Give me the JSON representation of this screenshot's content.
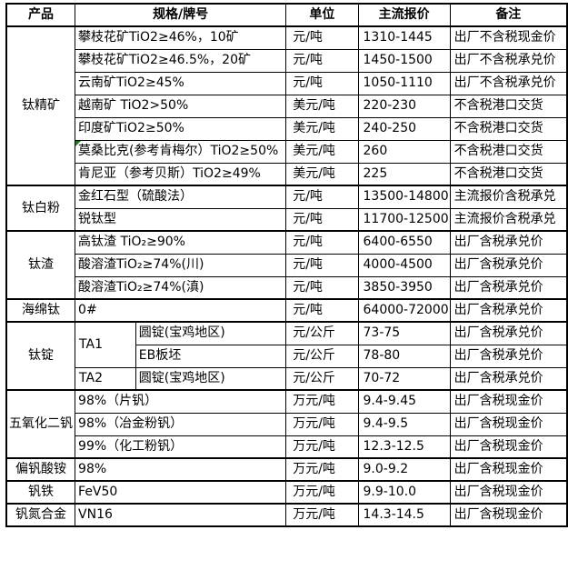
{
  "colors": {
    "border": "#000000",
    "comment_marker": "#1e7b1e",
    "background": "#ffffff",
    "text": "#000000"
  },
  "table": {
    "headers": {
      "product": "产品",
      "spec": "规格/牌号",
      "unit": "单位",
      "price": "主流报价",
      "note": "备注"
    },
    "groups": [
      {
        "product": "钛精矿",
        "rows": [
          {
            "spec": "攀枝花矿TiO2≥46%，10矿",
            "unit": "元/吨",
            "price": "1310-1445",
            "note": "出厂不含税现金价"
          },
          {
            "spec": "攀枝花矿TiO2≥46.5%，20矿",
            "unit": "元/吨",
            "price": "1450-1500",
            "note": "出厂不含税承兑价"
          },
          {
            "spec": "云南矿TiO2≥45%",
            "unit": "元/吨",
            "price": "1050-1110",
            "note": "出厂不含税承兑价"
          },
          {
            "spec": "越南矿 TiO2>50%",
            "unit": "美元/吨",
            "price": "220-230",
            "note": "不含税港口交货"
          },
          {
            "spec": "印度矿TiO2≥50%",
            "unit": "美元/吨",
            "price": "240-250",
            "note": "不含税港口交货"
          },
          {
            "spec": "莫桑比克(参考肯梅尔）TiO2≥50%",
            "unit": "美元/吨",
            "price": "260",
            "note": "不含税港口交货",
            "comment_marker": true
          },
          {
            "spec": "肯尼亚（参考贝斯）TiO2≥49%",
            "unit": "美元/吨",
            "price": "225",
            "note": "不含税港口交货"
          }
        ]
      },
      {
        "product": "钛白粉",
        "rows": [
          {
            "spec": "金红石型（硫酸法）",
            "unit": "元/吨",
            "price": "13500-14800",
            "note": "主流报价含税承兑"
          },
          {
            "spec": "锐钛型",
            "unit": "元/吨",
            "price": "11700-12500",
            "note": "主流报价含税承兑"
          }
        ]
      },
      {
        "product": "钛渣",
        "rows": [
          {
            "spec": "高钛渣 TiO₂≥90%",
            "unit": "元/吨",
            "price": "6400-6550",
            "note": "出厂含税承兑价"
          },
          {
            "spec": "酸溶渣TiO₂≥74%(川)",
            "unit": "元/吨",
            "price": "4000-4500",
            "note": "出厂含税承兑价"
          },
          {
            "spec": "酸溶渣TiO₂≥74%(滇)",
            "unit": "元/吨",
            "price": "3850-3950",
            "note": "出厂含税承兑价"
          }
        ]
      },
      {
        "product": "海绵钛",
        "rows": [
          {
            "spec": "0#",
            "unit": "元/吨",
            "price": "64000-72000",
            "note": "出厂含税承兑价"
          }
        ]
      },
      {
        "product": "钛锭",
        "has_grade_column": true,
        "rows": [
          {
            "grade": "TA1",
            "grade_rowspan": 2,
            "spec": "圆锭(宝鸡地区)",
            "unit": "元/公斤",
            "price": "73-75",
            "note": "出厂含税承兑价"
          },
          {
            "spec": "EB板坯",
            "unit": "元/公斤",
            "price": "78-80",
            "note": "出厂含税承兑价"
          },
          {
            "grade": "TA2",
            "grade_rowspan": 1,
            "spec": "圆锭(宝鸡地区)",
            "unit": "元/公斤",
            "price": "70-72",
            "note": "出厂含税承兑价"
          }
        ]
      },
      {
        "product": "五氧化二钒",
        "rows": [
          {
            "spec": "98%（片钒）",
            "unit": "万元/吨",
            "price": "9.4-9.45",
            "note": "出厂含税现金价"
          },
          {
            "spec": "98%（冶金粉钒）",
            "unit": "万元/吨",
            "price": "9.4-9.5",
            "note": "出厂含税现金价"
          },
          {
            "spec": "99%（化工粉钒）",
            "unit": "万元/吨",
            "price": "12.3-12.5",
            "note": "出厂含税现金价"
          }
        ]
      },
      {
        "product": "偏钒酸铵",
        "rows": [
          {
            "spec": "98%",
            "unit": "万元/吨",
            "price": "9.0-9.2",
            "note": "出厂含税现金价"
          }
        ]
      },
      {
        "product": "钒铁",
        "rows": [
          {
            "spec": "FeV50",
            "unit": "万元/吨",
            "price": "9.9-10.0",
            "note": "出厂含税现金价"
          }
        ]
      },
      {
        "product": "钒氮合金",
        "rows": [
          {
            "spec": "VN16",
            "unit": "万元/吨",
            "price": "14.3-14.5",
            "note": "出厂含税现金价"
          }
        ]
      }
    ]
  }
}
